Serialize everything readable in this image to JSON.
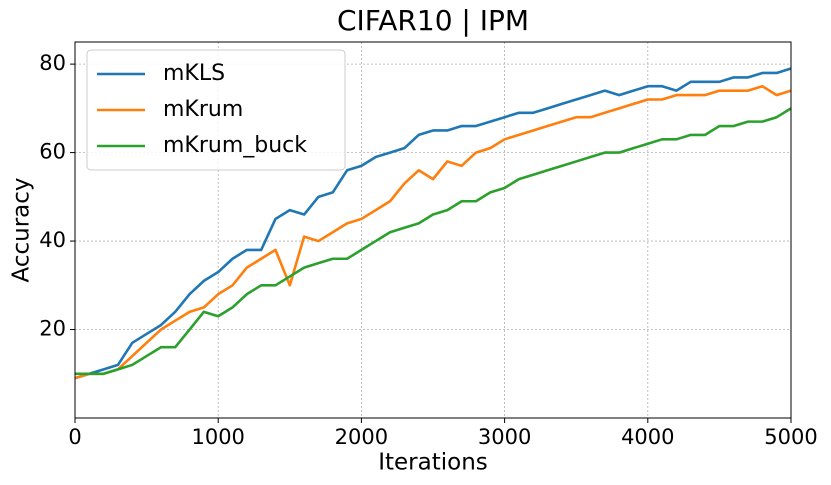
{
  "chart_data": {
    "type": "line",
    "title": "CIFAR10 | IPM",
    "x_label": "Iterations",
    "y_label": "Accuracy",
    "x": [
      0,
      100,
      200,
      300,
      400,
      500,
      600,
      700,
      800,
      900,
      1000,
      1100,
      1200,
      1300,
      1400,
      1500,
      1600,
      1700,
      1800,
      1900,
      2000,
      2100,
      2200,
      2300,
      2400,
      2500,
      2600,
      2700,
      2800,
      2900,
      3000,
      3100,
      3200,
      3300,
      3400,
      3500,
      3600,
      3700,
      3800,
      3900,
      4000,
      4100,
      4200,
      4300,
      4400,
      4500,
      4600,
      4700,
      4800,
      4900,
      5000
    ],
    "series": [
      {
        "name": "mKLS",
        "color": "#1f77b4",
        "values": [
          9,
          10,
          11,
          12,
          17,
          19,
          21,
          24,
          28,
          31,
          33,
          36,
          38,
          38,
          45,
          47,
          46,
          50,
          51,
          56,
          57,
          59,
          60,
          61,
          64,
          65,
          65,
          66,
          66,
          67,
          68,
          69,
          69,
          70,
          71,
          72,
          73,
          74,
          73,
          74,
          75,
          75,
          74,
          76,
          76,
          76,
          77,
          77,
          78,
          78,
          79
        ]
      },
      {
        "name": "mKrum",
        "color": "#ff7f0e",
        "values": [
          9,
          10,
          10,
          11,
          14,
          17,
          20,
          22,
          24,
          25,
          28,
          30,
          34,
          36,
          38,
          30,
          41,
          40,
          42,
          44,
          45,
          47,
          49,
          53,
          56,
          54,
          58,
          57,
          60,
          61,
          63,
          64,
          65,
          66,
          67,
          68,
          68,
          69,
          70,
          71,
          72,
          72,
          73,
          73,
          73,
          74,
          74,
          74,
          75,
          73,
          74
        ]
      },
      {
        "name": "mKrum_buck",
        "color": "#2ca02c",
        "values": [
          10,
          10,
          10,
          11,
          12,
          14,
          16,
          16,
          20,
          24,
          23,
          25,
          28,
          30,
          30,
          32,
          34,
          35,
          36,
          36,
          38,
          40,
          42,
          43,
          44,
          46,
          47,
          49,
          49,
          51,
          52,
          54,
          55,
          56,
          57,
          58,
          59,
          60,
          60,
          61,
          62,
          63,
          63,
          64,
          64,
          66,
          66,
          67,
          67,
          68,
          70
        ]
      }
    ],
    "xlim": [
      0,
      5000
    ],
    "xticks": [
      0,
      1000,
      2000,
      3000,
      4000,
      5000
    ],
    "ylim": [
      0,
      85
    ],
    "yticks": [
      20,
      40,
      60,
      80
    ],
    "grid": true,
    "legend": "upper-left"
  }
}
